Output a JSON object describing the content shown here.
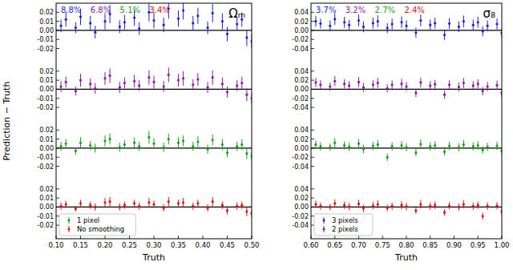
{
  "chart_data": [
    {
      "type": "scatter",
      "title": "Ωₘ",
      "x_label": "Truth",
      "y_label": "Prediction − Truth",
      "annotations": [
        "8.8%",
        "6.8%",
        "5.1%",
        "3.4%"
      ],
      "legend": "lower left",
      "marker": "circle",
      "baseline": 0,
      "xlim": [
        0.1,
        0.5
      ],
      "xticks": [
        {
          "value": 0.1,
          "label": "0.10"
        },
        0.15,
        {
          "value": 0.2,
          "label": "0.20"
        },
        0.25,
        {
          "value": 0.3,
          "label": "0.30"
        },
        0.35,
        {
          "value": 0.4,
          "label": "0.40"
        },
        0.45,
        {
          "value": 0.5,
          "label": "0.50"
        }
      ],
      "ylim": [
        -0.035,
        0.03
      ],
      "yticks": [
        -0.02,
        -0.01,
        {
          "value": 0,
          "label": "0.00"
        },
        0.01,
        0.02
      ],
      "x": [
        0.11,
        0.12,
        0.14,
        0.15,
        0.17,
        0.18,
        0.2,
        0.21,
        0.23,
        0.24,
        0.26,
        0.27,
        0.29,
        0.3,
        0.32,
        0.33,
        0.35,
        0.36,
        0.38,
        0.39,
        0.41,
        0.42,
        0.44,
        0.45,
        0.47,
        0.48,
        0.49,
        0.5
      ],
      "series": [
        {
          "color": "#1f1fd6",
          "values": [
            0.005,
            0.012,
            0.003,
            0.015,
            0.008,
            -0.002,
            0.01,
            0.018,
            0.004,
            0.009,
            0.014,
            0.002,
            0.02,
            0.011,
            0.006,
            0.024,
            0.013,
            0.022,
            0.008,
            0.016,
            0.003,
            0.019,
            0.01,
            -0.004,
            0.007,
            0.012,
            -0.008,
            -0.012
          ],
          "errors": [
            0.007,
            0.008,
            0.006,
            0.009,
            0.008,
            0.007,
            0.009,
            0.01,
            0.007,
            0.008,
            0.009,
            0.007,
            0.01,
            0.009,
            0.008,
            0.011,
            0.009,
            0.01,
            0.008,
            0.009,
            0.007,
            0.01,
            0.009,
            0.008,
            0.007,
            0.008,
            0.009,
            0.008
          ]
        },
        {
          "color": "#8b1a9e",
          "values": [
            0.003,
            0.008,
            -0.002,
            0.01,
            0.006,
            0.001,
            0.012,
            0.015,
            0.002,
            0.007,
            0.009,
            0.004,
            0.013,
            0.008,
            0.003,
            0.016,
            0.01,
            0.012,
            0.005,
            0.011,
            0.002,
            0.013,
            0.006,
            -0.003,
            0.004,
            0.007,
            -0.006,
            -0.01
          ],
          "errors": [
            0.006,
            0.006,
            0.005,
            0.007,
            0.006,
            0.006,
            0.007,
            0.008,
            0.006,
            0.006,
            0.007,
            0.006,
            0.008,
            0.007,
            0.006,
            0.008,
            0.007,
            0.008,
            0.006,
            0.007,
            0.006,
            0.008,
            0.007,
            0.006,
            0.006,
            0.007,
            0.007,
            0.006
          ]
        },
        {
          "name": "1 pixel",
          "color": "#1a9e1a",
          "values": [
            0.002,
            0.005,
            -0.003,
            0.006,
            0.003,
            0.0,
            0.008,
            0.01,
            0.001,
            0.004,
            0.006,
            0.002,
            0.012,
            0.005,
            0.001,
            0.01,
            0.006,
            0.008,
            0.002,
            0.007,
            -0.001,
            0.009,
            0.004,
            -0.005,
            0.002,
            0.004,
            -0.006,
            -0.009
          ],
          "errors": [
            0.005,
            0.005,
            0.004,
            0.006,
            0.005,
            0.005,
            0.006,
            0.006,
            0.005,
            0.005,
            0.006,
            0.005,
            0.007,
            0.006,
            0.005,
            0.006,
            0.006,
            0.006,
            0.005,
            0.006,
            0.005,
            0.006,
            0.006,
            0.005,
            0.005,
            0.006,
            0.006,
            0.005
          ]
        },
        {
          "name": "No smoothing",
          "color": "#e01010",
          "values": [
            0.001,
            0.003,
            -0.002,
            0.004,
            0.002,
            0.0,
            0.005,
            0.006,
            0.0,
            0.002,
            0.004,
            0.001,
            0.005,
            0.003,
            -0.001,
            0.006,
            0.004,
            0.005,
            0.001,
            0.004,
            -0.001,
            0.006,
            0.002,
            -0.004,
            0.001,
            0.002,
            -0.005,
            -0.007
          ],
          "errors": [
            0.004,
            0.004,
            0.003,
            0.004,
            0.004,
            0.004,
            0.005,
            0.005,
            0.004,
            0.004,
            0.004,
            0.004,
            0.005,
            0.004,
            0.004,
            0.005,
            0.004,
            0.005,
            0.004,
            0.004,
            0.004,
            0.005,
            0.004,
            0.004,
            0.004,
            0.004,
            0.005,
            0.004
          ]
        }
      ]
    },
    {
      "type": "scatter",
      "title": "σ₈",
      "x_label": "Truth",
      "annotations": [
        "3.7%",
        "3.2%",
        "2.7%",
        "2.4%"
      ],
      "legend": "lower left",
      "marker": "circle",
      "baseline": 0,
      "xlim": [
        0.6,
        1.0
      ],
      "xticks": [
        {
          "value": 0.6,
          "label": "0.60"
        },
        0.65,
        {
          "value": 0.7,
          "label": "0.70"
        },
        0.75,
        {
          "value": 0.8,
          "label": "0.80"
        },
        0.85,
        {
          "value": 0.9,
          "label": "0.90"
        },
        0.95,
        {
          "value": 1.0,
          "label": "1.00"
        }
      ],
      "ylim": [
        -0.07,
        0.06
      ],
      "yticks": [
        -0.04,
        -0.02,
        {
          "value": 0,
          "label": "0.00"
        },
        0.02,
        0.04
      ],
      "x": [
        0.61,
        0.62,
        0.64,
        0.65,
        0.67,
        0.68,
        0.7,
        0.71,
        0.73,
        0.74,
        0.76,
        0.77,
        0.79,
        0.8,
        0.82,
        0.83,
        0.85,
        0.86,
        0.88,
        0.89,
        0.91,
        0.92,
        0.94,
        0.95,
        0.96,
        0.97,
        0.99,
        1.0
      ],
      "series": [
        {
          "name": "3 pixels",
          "color": "#1f1fd6",
          "values": [
            0.02,
            0.015,
            0.01,
            0.025,
            0.018,
            0.012,
            0.022,
            0.008,
            0.016,
            0.02,
            0.005,
            0.014,
            0.018,
            0.01,
            -0.005,
            0.022,
            0.012,
            0.016,
            -0.01,
            0.015,
            0.008,
            0.02,
            0.012,
            0.018,
            -0.002,
            0.01,
            0.014,
            -0.006
          ],
          "errors": [
            0.012,
            0.011,
            0.012,
            0.013,
            0.012,
            0.011,
            0.013,
            0.012,
            0.012,
            0.013,
            0.011,
            0.012,
            0.013,
            0.012,
            0.011,
            0.013,
            0.012,
            0.012,
            0.011,
            0.012,
            0.012,
            0.013,
            0.012,
            0.012,
            0.011,
            0.012,
            0.012,
            0.011
          ]
        },
        {
          "name": "2 pixels",
          "color": "#8b1a9e",
          "values": [
            0.015,
            0.01,
            0.006,
            0.018,
            0.012,
            0.008,
            0.016,
            0.004,
            0.01,
            0.014,
            0.002,
            0.01,
            0.012,
            0.006,
            -0.008,
            0.015,
            0.008,
            0.011,
            -0.012,
            0.01,
            0.005,
            0.014,
            0.008,
            0.012,
            -0.004,
            0.006,
            0.009,
            -0.008
          ],
          "errors": [
            0.01,
            0.01,
            0.009,
            0.011,
            0.01,
            0.01,
            0.011,
            0.01,
            0.01,
            0.011,
            0.009,
            0.01,
            0.011,
            0.01,
            0.009,
            0.011,
            0.01,
            0.01,
            0.009,
            0.01,
            0.01,
            0.011,
            0.01,
            0.01,
            0.009,
            0.01,
            0.01,
            0.009
          ]
        },
        {
          "color": "#1a9e1a",
          "values": [
            0.008,
            0.004,
            0.002,
            0.012,
            0.006,
            0.003,
            0.01,
            -0.002,
            0.005,
            0.008,
            -0.02,
            0.004,
            0.006,
            0.002,
            -0.01,
            0.009,
            0.004,
            0.006,
            -0.008,
            0.005,
            0.002,
            0.008,
            0.004,
            0.006,
            -0.004,
            0.003,
            0.005,
            -0.006
          ],
          "errors": [
            0.009,
            0.009,
            0.008,
            0.01,
            0.009,
            0.009,
            0.01,
            0.009,
            0.009,
            0.01,
            0.008,
            0.009,
            0.01,
            0.009,
            0.008,
            0.01,
            0.009,
            0.009,
            0.008,
            0.009,
            0.009,
            0.01,
            0.009,
            0.009,
            0.008,
            0.009,
            0.009,
            0.008
          ]
        },
        {
          "color": "#e01010",
          "values": [
            0.006,
            0.002,
            0.0,
            0.008,
            0.004,
            0.001,
            0.007,
            -0.003,
            0.003,
            0.006,
            -0.002,
            0.002,
            0.004,
            0.001,
            -0.008,
            0.006,
            0.002,
            0.004,
            -0.012,
            0.003,
            0.0,
            0.006,
            0.002,
            0.004,
            -0.02,
            0.002,
            0.003,
            -0.01
          ],
          "errors": [
            0.008,
            0.008,
            0.007,
            0.009,
            0.008,
            0.008,
            0.009,
            0.008,
            0.008,
            0.009,
            0.007,
            0.008,
            0.009,
            0.008,
            0.007,
            0.009,
            0.008,
            0.008,
            0.007,
            0.008,
            0.008,
            0.009,
            0.008,
            0.008,
            0.007,
            0.008,
            0.008,
            0.007
          ]
        }
      ]
    }
  ]
}
